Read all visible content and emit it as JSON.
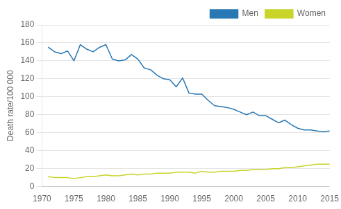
{
  "chart_data": {
    "type": "line",
    "ylabel": "Death rate/100 000",
    "x": [
      1971,
      1972,
      1973,
      1974,
      1975,
      1976,
      1977,
      1978,
      1979,
      1980,
      1981,
      1982,
      1983,
      1984,
      1985,
      1986,
      1987,
      1988,
      1989,
      1990,
      1991,
      1992,
      1993,
      1994,
      1995,
      1996,
      1997,
      1998,
      1999,
      2000,
      2001,
      2002,
      2003,
      2004,
      2005,
      2006,
      2007,
      2008,
      2009,
      2010,
      2011,
      2012,
      2013,
      2014,
      2015
    ],
    "series": [
      {
        "name": "Men",
        "color": "#2878b4",
        "values": [
          155,
          150,
          148,
          151,
          140,
          158,
          153,
          150,
          155,
          158,
          142,
          140,
          141,
          147,
          142,
          132,
          130,
          124,
          120,
          119,
          111,
          121,
          104,
          103,
          103,
          96,
          90,
          89,
          88,
          86,
          83,
          80,
          83,
          79,
          79,
          75,
          71,
          74,
          69,
          65,
          63,
          63,
          62,
          61,
          62
        ]
      },
      {
        "name": "Women",
        "color": "#c8d42a",
        "values": [
          11,
          10,
          10,
          10,
          9,
          10,
          11,
          11,
          12,
          13,
          12,
          12,
          13,
          14,
          13,
          14,
          14,
          15,
          15,
          15,
          16,
          16,
          16,
          15,
          17,
          16,
          16,
          17,
          17,
          17,
          18,
          18,
          19,
          19,
          19,
          20,
          20,
          21,
          21,
          22,
          23,
          24,
          25,
          25,
          25
        ]
      }
    ],
    "xlim": [
      1970,
      2015
    ],
    "xticks": [
      1970,
      1975,
      1980,
      1985,
      1990,
      1995,
      2000,
      2005,
      2010,
      2015
    ],
    "ylim": [
      0,
      180
    ],
    "yticks": [
      0,
      20,
      40,
      60,
      80,
      100,
      120,
      140,
      160,
      180
    ],
    "grid": "y",
    "legend": "upper right"
  }
}
